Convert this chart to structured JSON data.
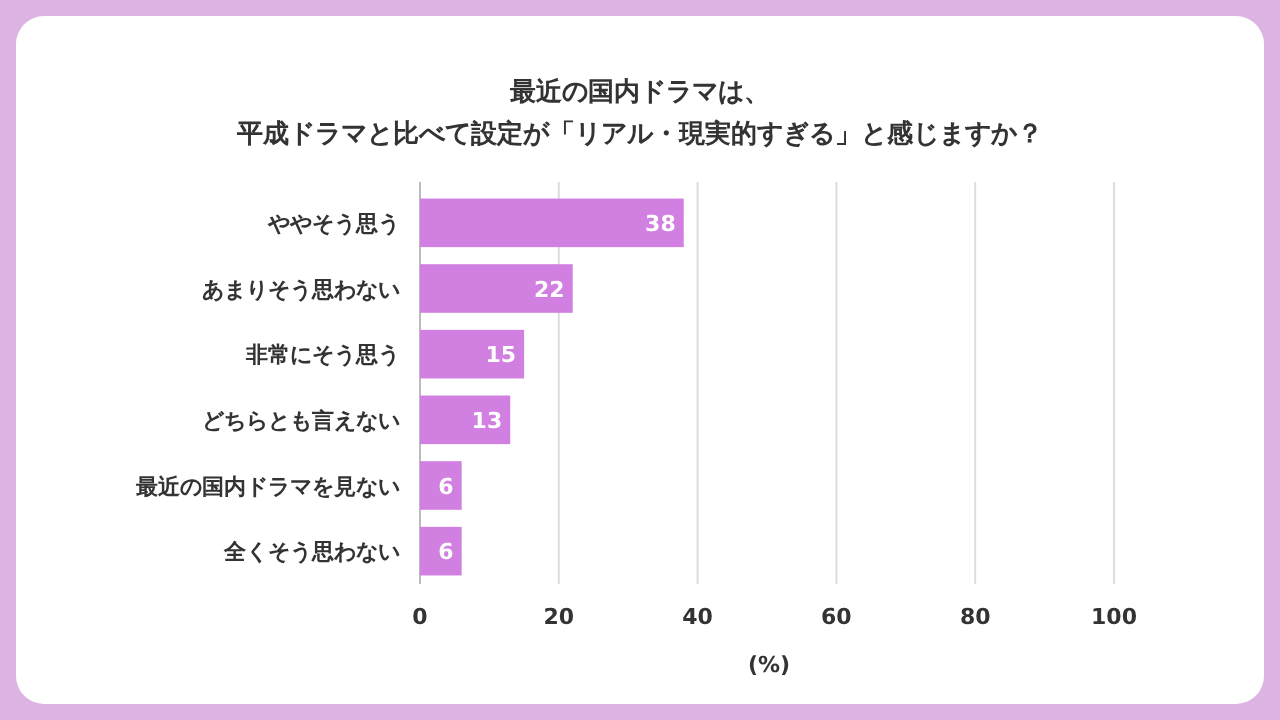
{
  "chart_data": {
    "type": "bar",
    "orientation": "horizontal",
    "title": "最近の国内ドラマは、",
    "subtitle": "平成ドラマと比べて設定が「リアル・現実的すぎる」と感じますか？",
    "categories": [
      "ややそう思う",
      "あまりそう思わない",
      "非常にそう思う",
      "どちらとも言えない",
      "最近の国内ドラマを見ない",
      "全くそう思わない"
    ],
    "values": [
      38,
      22,
      15,
      13,
      6,
      6
    ],
    "color": "#d17fe0",
    "xlim": [
      0,
      100
    ],
    "xticks": [
      0,
      20,
      40,
      60,
      80,
      100
    ],
    "xlabel": "(%)",
    "grid": "x",
    "data_labels": true
  }
}
